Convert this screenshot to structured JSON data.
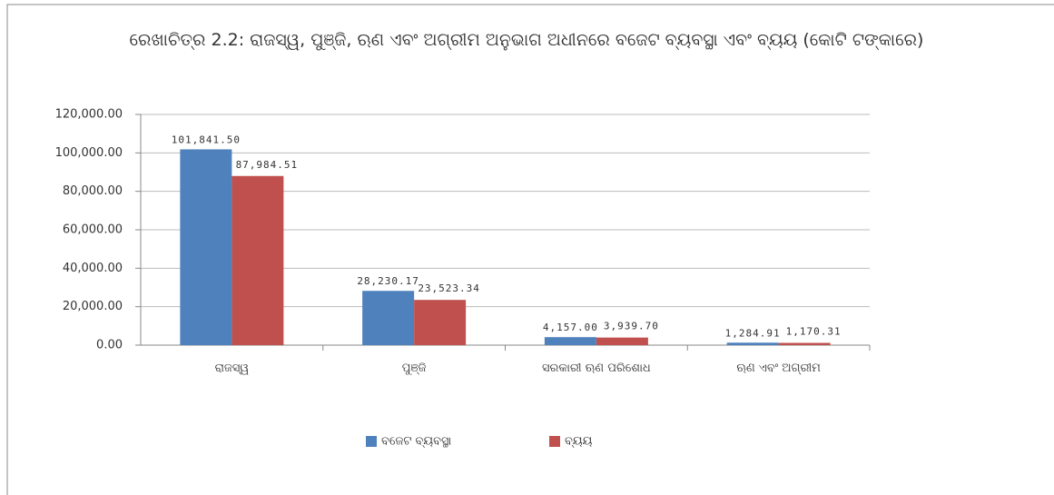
{
  "chart_data": {
    "type": "bar",
    "title": "ରେଖାଚିତ୍ର 2.2:  ରାଜସ୍ୱ, ପୁଞ୍ଜି, ଋଣ ଏବଂ ଅଗ୍ରୀମ ଅନୁଭାଗ ଅଧୀନରେ ବଜେଟ ବ୍ୟବସ୍ଥା ଏବଂ ବ୍ୟୟ    (କୋଟି ଟଙ୍କାରେ)",
    "categories": [
      "ରାଜସ୍ୱ",
      "ପୁଞ୍ଜି",
      "ସରକାରୀ ଋଣ ପରିଶୋଧ",
      "ଋଣ ଏବଂ ଅଗ୍ରୀମ"
    ],
    "series": [
      {
        "name": "ବଜେଟ ବ୍ୟବସ୍ଥା",
        "color": "#4f81bd",
        "values": [
          101841.5,
          28230.17,
          4157,
          1284.91
        ],
        "value_labels": [
          "101,841.50",
          "28,230.17",
          "4,157.00",
          "1,284.91"
        ]
      },
      {
        "name": "ବ୍ୟୟ",
        "color": "#c0504d",
        "values": [
          87984.51,
          23523.34,
          3939.7,
          1170.31
        ],
        "value_labels": [
          "87,984.51",
          "23,523.34",
          "3,939.70",
          "1,170.31"
        ]
      }
    ],
    "ylim": [
      0,
      120000
    ],
    "yticks": [
      {
        "value": 0,
        "label": "0.00"
      },
      {
        "value": 20000,
        "label": "20,000.00"
      },
      {
        "value": 40000,
        "label": "40,000.00"
      },
      {
        "value": 60000,
        "label": "60,000.00"
      },
      {
        "value": 80000,
        "label": "80,000.00"
      },
      {
        "value": 100000,
        "label": "100,000.00"
      },
      {
        "value": 120000,
        "label": "120,000.00"
      }
    ],
    "grid": true,
    "legend": "bottom"
  }
}
